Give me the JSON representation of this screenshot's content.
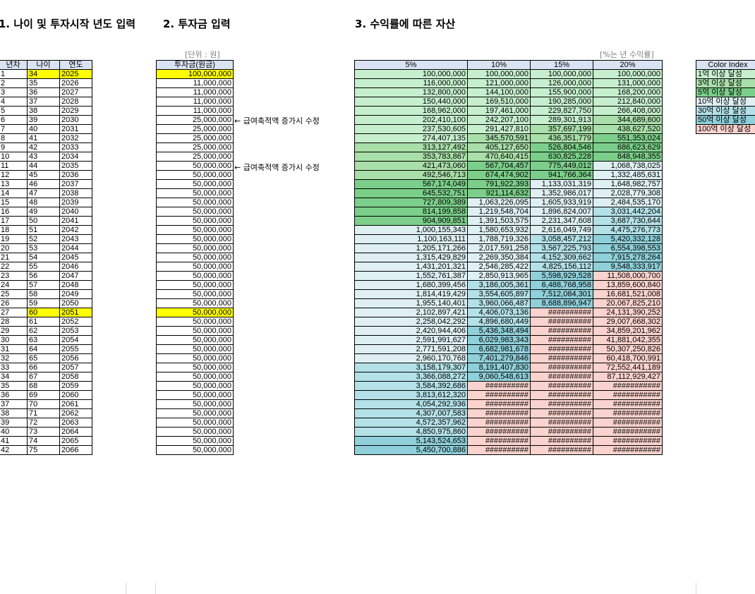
{
  "titles": {
    "t1": "1. 나이 및 투자시작 년도 입력",
    "t2": "2. 투자금 입력",
    "t3": "3. 수익률에 따른 자산"
  },
  "units": {
    "won": "[단위 : 원]",
    "rate": "[%는 년 수익률]"
  },
  "age_table": {
    "headers": [
      "년차",
      "나이",
      "연도"
    ],
    "start_age": 34,
    "start_year": 2025,
    "rows": 42,
    "highlight_rows": [
      1,
      27
    ]
  },
  "invest_table": {
    "header": "투자금(원금)",
    "values": [
      "100,000,000",
      "11,000,000",
      "11,000,000",
      "11,000,000",
      "11,000,000",
      "25,000,000",
      "25,000,000",
      "25,000,000",
      "25,000,000",
      "25,000,000",
      "50,000,000",
      "50,000,000",
      "50,000,000",
      "50,000,000",
      "50,000,000",
      "50,000,000",
      "50,000,000",
      "50,000,000",
      "50,000,000",
      "50,000,000",
      "50,000,000",
      "50,000,000",
      "50,000,000",
      "50,000,000",
      "50,000,000",
      "50,000,000",
      "50,000,000",
      "50,000,000",
      "50,000,000",
      "50,000,000",
      "50,000,000",
      "50,000,000",
      "50,000,000",
      "50,000,000",
      "50,000,000",
      "50,000,000",
      "50,000,000",
      "50,000,000",
      "50,000,000",
      "50,000,000",
      "50,000,000",
      "50,000,000"
    ],
    "highlight_rows": [
      1,
      27
    ]
  },
  "notes": [
    {
      "row": 6,
      "text": "← 급여축적액 증가시 수정"
    },
    {
      "row": 11,
      "text": "← 급여축적액 증가시 수정"
    }
  ],
  "asset_table": {
    "headers": [
      "5%",
      "10%",
      "15%",
      "20%"
    ],
    "rows": [
      [
        "100,000,000",
        "100,000,000",
        "100,000,000",
        "100,000,000"
      ],
      [
        "116,000,000",
        "121,000,000",
        "126,000,000",
        "131,000,000"
      ],
      [
        "132,800,000",
        "144,100,000",
        "155,900,000",
        "168,200,000"
      ],
      [
        "150,440,000",
        "169,510,000",
        "190,285,000",
        "212,840,000"
      ],
      [
        "168,962,000",
        "197,461,000",
        "229,827,750",
        "266,408,000"
      ],
      [
        "202,410,100",
        "242,207,100",
        "289,301,913",
        "344,689,600"
      ],
      [
        "237,530,605",
        "291,427,810",
        "357,697,199",
        "438,627,520"
      ],
      [
        "274,407,135",
        "345,570,591",
        "436,351,779",
        "551,353,024"
      ],
      [
        "313,127,492",
        "405,127,650",
        "526,804,546",
        "686,623,629"
      ],
      [
        "353,783,867",
        "470,640,415",
        "630,825,228",
        "848,948,355"
      ],
      [
        "421,473,060",
        "567,704,457",
        "775,449,012",
        "1,068,738,025"
      ],
      [
        "492,546,713",
        "674,474,902",
        "941,766,364",
        "1,332,485,631"
      ],
      [
        "567,174,049",
        "791,922,393",
        "1,133,031,319",
        "1,648,982,757"
      ],
      [
        "645,532,751",
        "921,114,632",
        "1,352,986,017",
        "2,028,779,308"
      ],
      [
        "727,809,389",
        "1,063,226,095",
        "1,605,933,919",
        "2,484,535,170"
      ],
      [
        "814,199,858",
        "1,219,548,704",
        "1,896,824,007",
        "3,031,442,204"
      ],
      [
        "904,909,851",
        "1,391,503,575",
        "2,231,347,608",
        "3,687,730,644"
      ],
      [
        "1,000,155,343",
        "1,580,653,932",
        "2,616,049,749",
        "4,475,276,773"
      ],
      [
        "1,100,163,111",
        "1,788,719,326",
        "3,058,457,212",
        "5,420,332,128"
      ],
      [
        "1,205,171,266",
        "2,017,591,258",
        "3,567,225,793",
        "6,554,398,553"
      ],
      [
        "1,315,429,829",
        "2,269,350,384",
        "4,152,309,662",
        "7,915,278,264"
      ],
      [
        "1,431,201,321",
        "2,546,285,422",
        "4,825,156,112",
        "9,548,333,917"
      ],
      [
        "1,552,761,387",
        "2,850,913,965",
        "5,598,929,528",
        "11,508,000,700"
      ],
      [
        "1,680,399,456",
        "3,186,005,361",
        "6,488,768,958",
        "13,859,600,840"
      ],
      [
        "1,814,419,429",
        "3,554,605,897",
        "7,512,084,301",
        "16,681,521,008"
      ],
      [
        "1,955,140,401",
        "3,960,066,487",
        "8,688,896,947",
        "20,067,825,210"
      ],
      [
        "2,102,897,421",
        "4,406,073,136",
        "##########",
        "24,131,390,252"
      ],
      [
        "2,258,042,292",
        "4,896,680,449",
        "##########",
        "29,007,668,302"
      ],
      [
        "2,420,944,406",
        "5,436,348,494",
        "##########",
        "34,859,201,962"
      ],
      [
        "2,591,991,627",
        "6,029,983,343",
        "##########",
        "41,881,042,355"
      ],
      [
        "2,771,591,208",
        "6,682,981,678",
        "##########",
        "50,307,250,826"
      ],
      [
        "2,960,170,768",
        "7,401,279,846",
        "##########",
        "60,418,700,991"
      ],
      [
        "3,158,179,307",
        "8,191,407,830",
        "##########",
        "72,552,441,189"
      ],
      [
        "3,366,088,272",
        "9,060,548,613",
        "##########",
        "87,112,929,427"
      ],
      [
        "3,584,392,686",
        "##########",
        "##########",
        "###########"
      ],
      [
        "3,813,612,320",
        "##########",
        "##########",
        "###########"
      ],
      [
        "4,054,292,936",
        "##########",
        "##########",
        "###########"
      ],
      [
        "4,307,007,583",
        "##########",
        "##########",
        "###########"
      ],
      [
        "4,572,357,962",
        "##########",
        "##########",
        "###########"
      ],
      [
        "4,850,975,860",
        "##########",
        "##########",
        "###########"
      ],
      [
        "5,143,524,653",
        "##########",
        "##########",
        "###########"
      ],
      [
        "5,450,700,886",
        "##########",
        "##########",
        "###########"
      ]
    ]
  },
  "color_index": {
    "header": "Color Index",
    "items": [
      {
        "label": "1억 이상 달성",
        "color": "#c6efce"
      },
      {
        "label": "3억 이상 달성",
        "color": "#a9dfa9"
      },
      {
        "label": "5억 이상 달성",
        "color": "#7ccf8a"
      },
      {
        "label": "10억 이상 달성",
        "color": "#dff0f3"
      },
      {
        "label": "30억 이상 달성",
        "color": "#b4e1e8"
      },
      {
        "label": "50억 이상 달성",
        "color": "#8fd0da"
      },
      {
        "label": "100억 이상 달성",
        "color": "#fbd3ce"
      }
    ]
  }
}
